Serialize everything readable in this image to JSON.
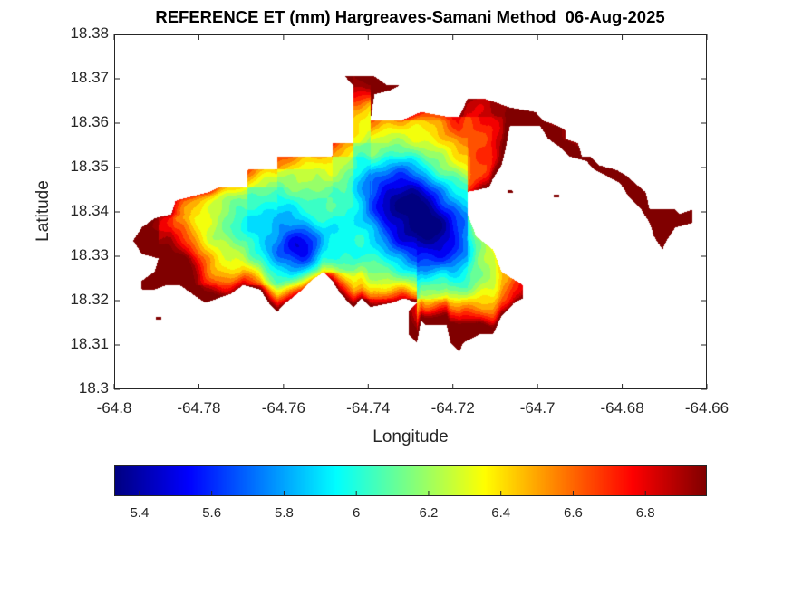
{
  "chart_data": {
    "type": "heatmap",
    "subtype": "filled-contour-map",
    "title": "REFERENCE ET (mm) Hargreaves-Samani Method  06-Aug-2025",
    "xlabel": "Longitude",
    "ylabel": "Latitude",
    "xlim": [
      -64.8,
      -64.66
    ],
    "ylim": [
      18.3,
      18.38
    ],
    "xticks": [
      -64.8,
      -64.78,
      -64.76,
      -64.74,
      -64.72,
      -64.7,
      -64.68,
      -64.66
    ],
    "xtick_labels": [
      "-64.8",
      "-64.78",
      "-64.76",
      "-64.74",
      "-64.72",
      "-64.7",
      "-64.68",
      "-64.66"
    ],
    "yticks": [
      18.3,
      18.31,
      18.32,
      18.33,
      18.34,
      18.35,
      18.36,
      18.37,
      18.38
    ],
    "ytick_labels": [
      "18.3",
      "18.31",
      "18.32",
      "18.33",
      "18.34",
      "18.35",
      "18.36",
      "18.37",
      "18.38"
    ],
    "grid": false,
    "colormap": "jet",
    "colorbar": {
      "orientation": "horizontal",
      "placement": "bottom",
      "range": [
        5.33,
        6.97
      ],
      "ticks": [
        5.4,
        5.6,
        5.8,
        6.0,
        6.2,
        6.4,
        6.6,
        6.8
      ],
      "tick_labels": [
        "5.4",
        "5.6",
        "5.8",
        "6",
        "6.2",
        "6.4",
        "6.6",
        "6.8"
      ]
    },
    "contour_levels": 22,
    "features": [
      {
        "kind": "minimum",
        "lon": -64.7255,
        "lat": 18.3353,
        "value": 5.35,
        "radius_deg": 0.01
      },
      {
        "kind": "minimum",
        "lon": -64.755,
        "lat": 18.3305,
        "value": 5.45,
        "radius_deg": 0.007
      },
      {
        "kind": "minimum",
        "lon": -64.7335,
        "lat": 18.3445,
        "value": 5.55,
        "radius_deg": 0.008
      },
      {
        "kind": "minimum",
        "lon": -64.766,
        "lat": 18.339,
        "value": 5.85,
        "radius_deg": 0.01
      },
      {
        "kind": "maximum",
        "lon": -64.7885,
        "lat": 18.327,
        "value": 6.92,
        "radius_deg": 0.01
      },
      {
        "kind": "maximum",
        "lon": -64.7185,
        "lat": 18.311,
        "value": 6.85,
        "radius_deg": 0.008
      },
      {
        "kind": "maximum",
        "lon": -64.6705,
        "lat": 18.3375,
        "value": 6.75,
        "radius_deg": 0.01
      },
      {
        "kind": "maximum",
        "lon": -64.7395,
        "lat": 18.3705,
        "value": 6.65,
        "radius_deg": 0.006
      },
      {
        "kind": "maximum",
        "lon": -64.71,
        "lat": 18.358,
        "value": 6.6,
        "radius_deg": 0.012
      }
    ],
    "background_value": 6.1,
    "region_outline_lonlat": [
      [
        -64.7735,
        18.3455
      ],
      [
        -64.7685,
        18.3455
      ],
      [
        -64.7685,
        18.3495
      ],
      [
        -64.7615,
        18.3495
      ],
      [
        -64.7615,
        18.3525
      ],
      [
        -64.7485,
        18.3525
      ],
      [
        -64.7485,
        18.3555
      ],
      [
        -64.7435,
        18.3555
      ],
      [
        -64.7435,
        18.3685
      ],
      [
        -64.7455,
        18.3705
      ],
      [
        -64.7385,
        18.3705
      ],
      [
        -64.7355,
        18.3685
      ],
      [
        -64.7325,
        18.3685
      ],
      [
        -64.7345,
        18.3675
      ],
      [
        -64.7385,
        18.3665
      ],
      [
        -64.7395,
        18.3605
      ],
      [
        -64.7325,
        18.3605
      ],
      [
        -64.7275,
        18.3625
      ],
      [
        -64.7215,
        18.3615
      ],
      [
        -64.7185,
        18.3615
      ],
      [
        -64.7165,
        18.3655
      ],
      [
        -64.7125,
        18.3655
      ],
      [
        -64.7065,
        18.3635
      ],
      [
        -64.7005,
        18.3625
      ],
      [
        -64.6985,
        18.3605
      ],
      [
        -64.6955,
        18.3595
      ],
      [
        -64.6935,
        18.3585
      ],
      [
        -64.6935,
        18.3565
      ],
      [
        -64.6905,
        18.3555
      ],
      [
        -64.6895,
        18.3525
      ],
      [
        -64.6875,
        18.3525
      ],
      [
        -64.6855,
        18.3505
      ],
      [
        -64.6815,
        18.3495
      ],
      [
        -64.6795,
        18.3485
      ],
      [
        -64.6745,
        18.3445
      ],
      [
        -64.6735,
        18.3405
      ],
      [
        -64.6675,
        18.3405
      ],
      [
        -64.6665,
        18.3395
      ],
      [
        -64.6635,
        18.3405
      ],
      [
        -64.6635,
        18.3375
      ],
      [
        -64.6675,
        18.3365
      ],
      [
        -64.6695,
        18.3335
      ],
      [
        -64.6705,
        18.3315
      ],
      [
        -64.6725,
        18.3345
      ],
      [
        -64.6735,
        18.3375
      ],
      [
        -64.6755,
        18.3405
      ],
      [
        -64.6785,
        18.3435
      ],
      [
        -64.6805,
        18.3465
      ],
      [
        -64.6865,
        18.3495
      ],
      [
        -64.6885,
        18.3515
      ],
      [
        -64.6925,
        18.3525
      ],
      [
        -64.6945,
        18.3545
      ],
      [
        -64.6975,
        18.3565
      ],
      [
        -64.6995,
        18.3595
      ],
      [
        -64.7065,
        18.3595
      ],
      [
        -64.7075,
        18.3545
      ],
      [
        -64.7085,
        18.3505
      ],
      [
        -64.7105,
        18.3475
      ],
      [
        -64.7115,
        18.3455
      ],
      [
        -64.7165,
        18.3445
      ],
      [
        -64.7165,
        18.3395
      ],
      [
        -64.7145,
        18.3345
      ],
      [
        -64.7105,
        18.3315
      ],
      [
        -64.7085,
        18.3265
      ],
      [
        -64.7035,
        18.3235
      ],
      [
        -64.7035,
        18.3205
      ],
      [
        -64.7055,
        18.3195
      ],
      [
        -64.7085,
        18.3165
      ],
      [
        -64.7105,
        18.3125
      ],
      [
        -64.7135,
        18.3125
      ],
      [
        -64.7175,
        18.3105
      ],
      [
        -64.7185,
        18.3085
      ],
      [
        -64.7205,
        18.3105
      ],
      [
        -64.7215,
        18.3145
      ],
      [
        -64.7265,
        18.3145
      ],
      [
        -64.7275,
        18.3155
      ],
      [
        -64.7285,
        18.3105
      ],
      [
        -64.7305,
        18.3125
      ],
      [
        -64.7305,
        18.3175
      ],
      [
        -64.7285,
        18.3195
      ],
      [
        -64.7315,
        18.3205
      ],
      [
        -64.7345,
        18.3195
      ],
      [
        -64.7395,
        18.3185
      ],
      [
        -64.7415,
        18.3205
      ],
      [
        -64.7435,
        18.3185
      ],
      [
        -64.7465,
        18.3215
      ],
      [
        -64.7485,
        18.3245
      ],
      [
        -64.7505,
        18.3265
      ],
      [
        -64.7535,
        18.3245
      ],
      [
        -64.7555,
        18.3225
      ],
      [
        -64.7595,
        18.3195
      ],
      [
        -64.7615,
        18.3175
      ],
      [
        -64.7635,
        18.3195
      ],
      [
        -64.7655,
        18.3225
      ],
      [
        -64.7695,
        18.3235
      ],
      [
        -64.7725,
        18.3215
      ],
      [
        -64.7755,
        18.3205
      ],
      [
        -64.7785,
        18.3195
      ],
      [
        -64.7815,
        18.3215
      ],
      [
        -64.7845,
        18.3235
      ],
      [
        -64.7875,
        18.3235
      ],
      [
        -64.7905,
        18.3225
      ],
      [
        -64.7935,
        18.3225
      ],
      [
        -64.7935,
        18.3245
      ],
      [
        -64.7905,
        18.3265
      ],
      [
        -64.7895,
        18.3295
      ],
      [
        -64.7935,
        18.3305
      ],
      [
        -64.7955,
        18.3335
      ],
      [
        -64.7935,
        18.3365
      ],
      [
        -64.7905,
        18.3385
      ],
      [
        -64.7865,
        18.3395
      ],
      [
        -64.7855,
        18.3425
      ],
      [
        -64.7815,
        18.3435
      ],
      [
        -64.7775,
        18.3445
      ],
      [
        -64.7755,
        18.3455
      ]
    ],
    "islets_lonlat": [
      [
        -64.7895,
        18.316
      ],
      [
        -64.7065,
        18.3445
      ],
      [
        -64.6955,
        18.3435
      ]
    ]
  }
}
